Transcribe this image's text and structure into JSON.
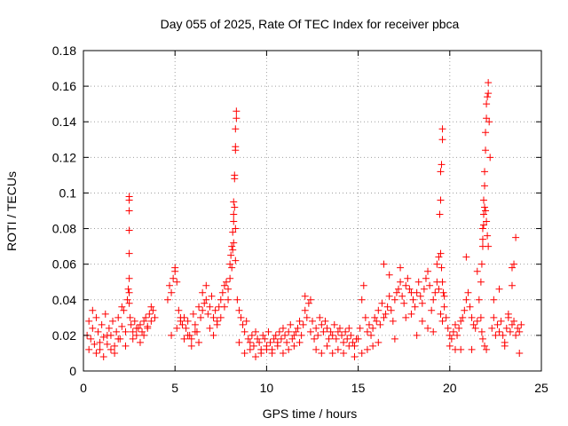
{
  "chart_data": {
    "type": "scatter",
    "title": "Day 055 of 2025, Rate Of TEC Index for receiver pbca",
    "xlabel": "GPS time / hours",
    "ylabel": "ROTI / TECUs",
    "xlim": [
      0,
      25
    ],
    "ylim": [
      0,
      0.18
    ],
    "x_ticks": [
      "0",
      "5",
      "10",
      "15",
      "20",
      "25"
    ],
    "y_ticks": [
      "0",
      "0.02",
      "0.04",
      "0.06",
      "0.08",
      "0.1",
      "0.12",
      "0.14",
      "0.16",
      "0.18"
    ],
    "grid": true,
    "marker": "+",
    "color": "#ff0000",
    "series": [
      {
        "x": [
          0.2,
          0.3,
          0.4,
          0.5,
          0.6,
          0.7,
          0.8,
          0.9,
          1.0,
          1.1,
          1.2,
          1.3,
          1.4,
          1.5,
          1.6,
          1.7,
          1.8,
          1.9,
          2.0,
          2.1,
          2.2,
          2.3,
          2.4,
          2.45,
          2.5,
          2.55,
          2.6,
          2.7,
          2.8,
          2.9,
          3.0,
          3.1,
          3.2,
          3.3,
          3.4,
          3.5,
          3.6,
          3.7,
          3.8,
          3.9,
          0.3,
          0.5,
          0.7,
          0.9,
          1.1,
          1.3,
          1.5,
          1.7,
          1.9,
          2.1,
          2.3,
          2.5,
          2.7,
          2.9,
          3.1,
          3.3,
          3.5,
          3.7,
          2.5,
          2.5,
          2.5,
          2.5,
          2.5,
          2.5,
          4.6,
          4.7,
          4.8,
          4.9,
          5.0,
          5.1,
          5.2,
          5.3,
          5.4,
          5.5,
          5.6,
          5.7,
          5.8,
          5.9,
          6.0,
          6.1,
          6.2,
          6.3,
          6.4,
          6.5,
          6.6,
          6.7,
          6.8,
          6.9,
          7.0,
          7.1,
          7.2,
          7.3,
          7.4,
          7.5,
          7.6,
          7.7,
          7.8,
          7.9,
          8.0,
          4.8,
          5.0,
          5.1,
          5.3,
          5.5,
          5.7,
          5.9,
          6.1,
          6.3,
          6.5,
          6.7,
          6.9,
          7.1,
          7.3,
          7.5,
          7.7,
          7.9,
          8.0,
          8.05,
          8.1,
          8.15,
          8.2,
          8.2,
          8.25,
          8.25,
          8.3,
          8.3,
          8.3,
          8.35,
          8.35,
          8.2,
          8.25,
          8.3,
          8.1,
          8.15,
          8.2,
          8.3,
          8.4,
          8.5,
          8.6,
          8.7,
          8.8,
          8.9,
          9.0,
          9.1,
          9.2,
          9.3,
          9.4,
          9.5,
          9.6,
          9.7,
          9.8,
          9.9,
          10.0,
          10.1,
          10.2,
          10.3,
          10.4,
          10.5,
          10.6,
          10.7,
          10.8,
          10.9,
          11.0,
          11.1,
          11.2,
          11.3,
          11.4,
          11.5,
          11.6,
          11.7,
          11.8,
          11.9,
          8.5,
          8.8,
          9.1,
          9.4,
          9.7,
          10.0,
          10.3,
          10.6,
          10.9,
          11.2,
          11.5,
          11.8,
          12.0,
          12.1,
          12.2,
          12.3,
          12.4,
          12.5,
          12.6,
          12.7,
          12.8,
          12.9,
          13.0,
          13.1,
          13.2,
          13.3,
          13.4,
          13.5,
          13.6,
          13.7,
          13.8,
          13.9,
          14.0,
          14.1,
          14.2,
          14.3,
          14.4,
          14.5,
          14.6,
          14.7,
          14.8,
          14.9,
          12.1,
          12.4,
          12.7,
          13.0,
          13.3,
          13.6,
          13.9,
          14.2,
          14.5,
          14.8,
          15.0,
          15.1,
          15.2,
          15.3,
          15.4,
          15.5,
          15.6,
          15.7,
          15.8,
          15.9,
          16.0,
          16.1,
          16.2,
          16.3,
          16.4,
          16.5,
          16.6,
          16.7,
          16.8,
          16.9,
          17.0,
          17.1,
          17.2,
          17.3,
          17.4,
          17.5,
          17.6,
          17.7,
          17.8,
          17.9,
          18.0,
          18.1,
          18.2,
          18.3,
          18.4,
          18.5,
          18.6,
          18.7,
          18.8,
          18.9,
          19.0,
          19.1,
          19.2,
          19.3,
          19.4,
          15.2,
          15.5,
          15.8,
          16.1,
          16.4,
          16.7,
          17.0,
          17.3,
          17.6,
          17.9,
          18.2,
          18.5,
          18.8,
          19.1,
          19.3,
          19.4,
          19.45,
          19.5,
          19.5,
          19.55,
          19.6,
          19.6,
          19.5,
          19.55,
          19.6,
          19.65,
          19.7,
          19.7,
          19.8,
          19.5,
          19.6,
          19.9,
          20.0,
          20.1,
          20.2,
          20.3,
          20.4,
          20.5,
          20.6,
          20.7,
          20.8,
          20.9,
          21.0,
          21.1,
          21.2,
          21.3,
          21.4,
          21.5,
          20.0,
          20.3,
          20.6,
          20.9,
          21.2,
          21.5,
          21.6,
          21.7,
          21.75,
          21.8,
          21.8,
          21.85,
          21.85,
          21.9,
          21.9,
          21.95,
          21.95,
          22.0,
          22.0,
          22.05,
          22.1,
          22.1,
          22.15,
          22.2,
          21.8,
          21.85,
          21.9,
          21.95,
          22.0,
          22.05,
          22.1,
          21.7,
          21.75,
          21.8,
          21.9,
          22.0,
          22.3,
          22.4,
          22.5,
          22.6,
          22.7,
          22.8,
          22.9,
          23.0,
          23.1,
          23.2,
          23.3,
          23.4,
          23.5,
          23.6,
          23.7,
          23.8,
          23.9,
          22.4,
          22.7,
          23.0,
          23.2,
          23.4,
          23.5,
          23.6,
          23.8,
          23.4
        ],
        "y": [
          0.02,
          0.028,
          0.018,
          0.024,
          0.015,
          0.03,
          0.022,
          0.012,
          0.026,
          0.019,
          0.032,
          0.015,
          0.024,
          0.02,
          0.028,
          0.014,
          0.022,
          0.03,
          0.018,
          0.025,
          0.034,
          0.022,
          0.04,
          0.046,
          0.038,
          0.03,
          0.026,
          0.022,
          0.028,
          0.02,
          0.024,
          0.026,
          0.022,
          0.028,
          0.03,
          0.025,
          0.032,
          0.028,
          0.034,
          0.03,
          0.012,
          0.034,
          0.01,
          0.016,
          0.008,
          0.02,
          0.012,
          0.01,
          0.018,
          0.036,
          0.014,
          0.044,
          0.018,
          0.024,
          0.016,
          0.02,
          0.024,
          0.036,
          0.098,
          0.096,
          0.09,
          0.079,
          0.066,
          0.052,
          0.04,
          0.048,
          0.044,
          0.052,
          0.058,
          0.05,
          0.034,
          0.028,
          0.026,
          0.03,
          0.024,
          0.028,
          0.02,
          0.018,
          0.032,
          0.026,
          0.022,
          0.036,
          0.03,
          0.034,
          0.038,
          0.04,
          0.032,
          0.036,
          0.042,
          0.03,
          0.034,
          0.028,
          0.036,
          0.04,
          0.044,
          0.048,
          0.05,
          0.046,
          0.052,
          0.02,
          0.056,
          0.024,
          0.03,
          0.018,
          0.02,
          0.014,
          0.022,
          0.016,
          0.044,
          0.048,
          0.024,
          0.02,
          0.026,
          0.03,
          0.036,
          0.04,
          0.06,
          0.065,
          0.07,
          0.078,
          0.084,
          0.095,
          0.108,
          0.11,
          0.124,
          0.126,
          0.136,
          0.142,
          0.146,
          0.088,
          0.092,
          0.08,
          0.058,
          0.068,
          0.072,
          0.062,
          0.04,
          0.034,
          0.03,
          0.026,
          0.022,
          0.028,
          0.018,
          0.016,
          0.02,
          0.014,
          0.022,
          0.018,
          0.016,
          0.012,
          0.02,
          0.018,
          0.014,
          0.022,
          0.016,
          0.012,
          0.018,
          0.02,
          0.016,
          0.022,
          0.018,
          0.024,
          0.02,
          0.016,
          0.022,
          0.026,
          0.018,
          0.02,
          0.022,
          0.024,
          0.028,
          0.02,
          0.016,
          0.01,
          0.012,
          0.008,
          0.01,
          0.012,
          0.01,
          0.014,
          0.01,
          0.012,
          0.014,
          0.016,
          0.026,
          0.034,
          0.03,
          0.038,
          0.022,
          0.028,
          0.018,
          0.024,
          0.02,
          0.03,
          0.026,
          0.022,
          0.028,
          0.024,
          0.018,
          0.022,
          0.02,
          0.026,
          0.018,
          0.022,
          0.024,
          0.02,
          0.016,
          0.022,
          0.018,
          0.024,
          0.02,
          0.016,
          0.014,
          0.018,
          0.042,
          0.04,
          0.012,
          0.01,
          0.014,
          0.01,
          0.012,
          0.01,
          0.014,
          0.008,
          0.018,
          0.024,
          0.04,
          0.048,
          0.03,
          0.022,
          0.026,
          0.02,
          0.024,
          0.03,
          0.028,
          0.034,
          0.026,
          0.038,
          0.03,
          0.032,
          0.036,
          0.042,
          0.034,
          0.028,
          0.04,
          0.044,
          0.046,
          0.05,
          0.042,
          0.038,
          0.048,
          0.052,
          0.046,
          0.044,
          0.04,
          0.036,
          0.044,
          0.05,
          0.042,
          0.038,
          0.046,
          0.052,
          0.056,
          0.048,
          0.034,
          0.04,
          0.044,
          0.05,
          0.046,
          0.01,
          0.012,
          0.014,
          0.016,
          0.06,
          0.054,
          0.018,
          0.058,
          0.03,
          0.032,
          0.02,
          0.028,
          0.024,
          0.022,
          0.06,
          0.064,
          0.088,
          0.096,
          0.112,
          0.116,
          0.13,
          0.136,
          0.066,
          0.058,
          0.05,
          0.044,
          0.042,
          0.036,
          0.03,
          0.032,
          0.028,
          0.024,
          0.02,
          0.018,
          0.022,
          0.026,
          0.02,
          0.024,
          0.028,
          0.03,
          0.034,
          0.04,
          0.044,
          0.036,
          0.03,
          0.026,
          0.024,
          0.028,
          0.014,
          0.012,
          0.012,
          0.064,
          0.012,
          0.056,
          0.04,
          0.05,
          0.06,
          0.07,
          0.08,
          0.088,
          0.096,
          0.104,
          0.112,
          0.124,
          0.134,
          0.142,
          0.15,
          0.154,
          0.156,
          0.162,
          0.14,
          0.12,
          0.074,
          0.082,
          0.092,
          0.09,
          0.084,
          0.076,
          0.07,
          0.03,
          0.022,
          0.018,
          0.014,
          0.012,
          0.024,
          0.03,
          0.02,
          0.026,
          0.022,
          0.028,
          0.02,
          0.016,
          0.024,
          0.03,
          0.022,
          0.026,
          0.028,
          0.02,
          0.024,
          0.022,
          0.026,
          0.04,
          0.046,
          0.014,
          0.032,
          0.058,
          0.06,
          0.075,
          0.01,
          0.048
        ]
      }
    ]
  }
}
